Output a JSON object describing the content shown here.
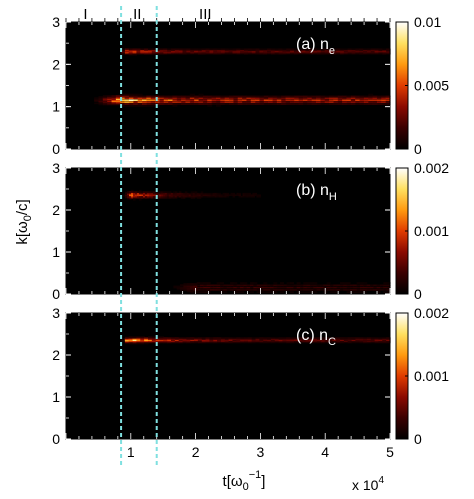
{
  "chart_data": {
    "type": "heatmap",
    "shared_x": {
      "label_main": "t[ω",
      "label_sub": "0",
      "label_sup": "−1",
      "label_close": "]",
      "ticks": [
        1,
        2,
        3,
        4,
        5
      ],
      "range": [
        0,
        5
      ],
      "multiplier_text": "x 10",
      "multiplier_exp": "4"
    },
    "shared_y": {
      "label_main": "k[ω",
      "label_sub": "0",
      "label_close": "/c]"
    },
    "regions": [
      {
        "label": "I",
        "x": 0.3
      },
      {
        "label": "II",
        "x": 1.1
      },
      {
        "label": "III",
        "x": 2.15
      }
    ],
    "boundaries": [
      0.85,
      1.4
    ],
    "boundary_color": "#7fe0e0",
    "colormap": [
      "#000000",
      "#3a0000",
      "#8b0a00",
      "#e03c00",
      "#ff9a10",
      "#ffe060",
      "#ffffff"
    ],
    "panels": [
      {
        "id": "a",
        "label": "(a) n",
        "label_sub": "e",
        "ylim": [
          0,
          3
        ],
        "yticks": [
          0,
          1,
          2,
          3
        ],
        "colorbar_range": [
          0,
          0.01
        ],
        "colorbar_ticks": [
          "0",
          "0.005",
          "0.01"
        ],
        "features": [
          {
            "k": 1.15,
            "t_start": 0.3,
            "t_peak": 0.85,
            "t_end": 5.0,
            "peak": 0.0095,
            "late": 0.0045,
            "width": 0.1
          },
          {
            "k": 2.3,
            "t_start": 0.85,
            "t_peak": 0.9,
            "t_end": 5.0,
            "peak": 0.006,
            "late": 0.0025,
            "width": 0.06
          }
        ]
      },
      {
        "id": "b",
        "label": "(b) n",
        "label_sub": "H",
        "ylim": [
          0,
          3
        ],
        "yticks": [
          0,
          1,
          2,
          3
        ],
        "colorbar_range": [
          0,
          0.002
        ],
        "colorbar_ticks": [
          "0",
          "0.001",
          "0.002"
        ],
        "features": [
          {
            "k": 2.35,
            "t_start": 0.85,
            "t_peak": 1.0,
            "t_end": 3.0,
            "peak": 0.0012,
            "late": 0.0001,
            "width": 0.08
          },
          {
            "k": 0.15,
            "t_start": 1.4,
            "t_peak": 2.0,
            "t_end": 5.0,
            "peak": 0.0004,
            "late": 0.0003,
            "width": 0.12
          }
        ]
      },
      {
        "id": "c",
        "label": "(c) n",
        "label_sub": "C",
        "ylim": [
          0,
          3
        ],
        "yticks": [
          0,
          1,
          2,
          3
        ],
        "colorbar_range": [
          0,
          0.002
        ],
        "colorbar_ticks": [
          "0",
          "0.001",
          "0.002"
        ],
        "features": [
          {
            "k": 2.35,
            "t_start": 0.85,
            "t_peak": 0.95,
            "t_end": 5.0,
            "peak": 0.0018,
            "late": 0.0005,
            "width": 0.06
          }
        ]
      }
    ]
  }
}
